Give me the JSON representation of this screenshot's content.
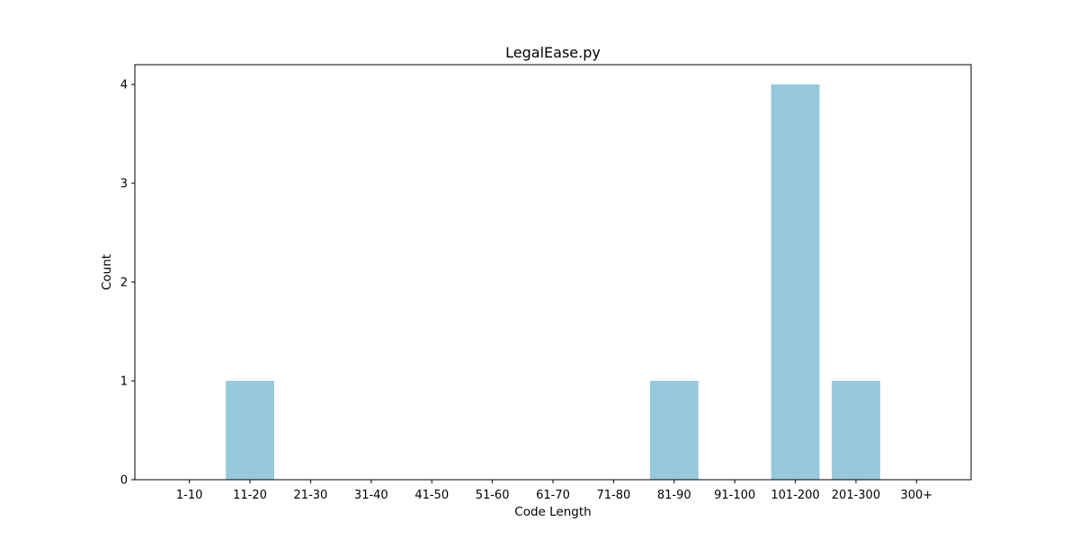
{
  "chart_data": {
    "type": "bar",
    "title": "LegalEase.py",
    "xlabel": "Code Length",
    "ylabel": "Count",
    "categories": [
      "1-10",
      "11-20",
      "21-30",
      "31-40",
      "41-50",
      "51-60",
      "61-70",
      "71-80",
      "81-90",
      "91-100",
      "101-200",
      "201-300",
      "300+"
    ],
    "values": [
      0,
      1,
      0,
      0,
      0,
      0,
      0,
      0,
      1,
      0,
      4,
      1,
      0
    ],
    "yticks": [
      0,
      1,
      2,
      3,
      4
    ],
    "ylim": [
      0,
      4.2
    ],
    "grid": false,
    "legend": "none",
    "bar_color": "#96c9dc"
  }
}
